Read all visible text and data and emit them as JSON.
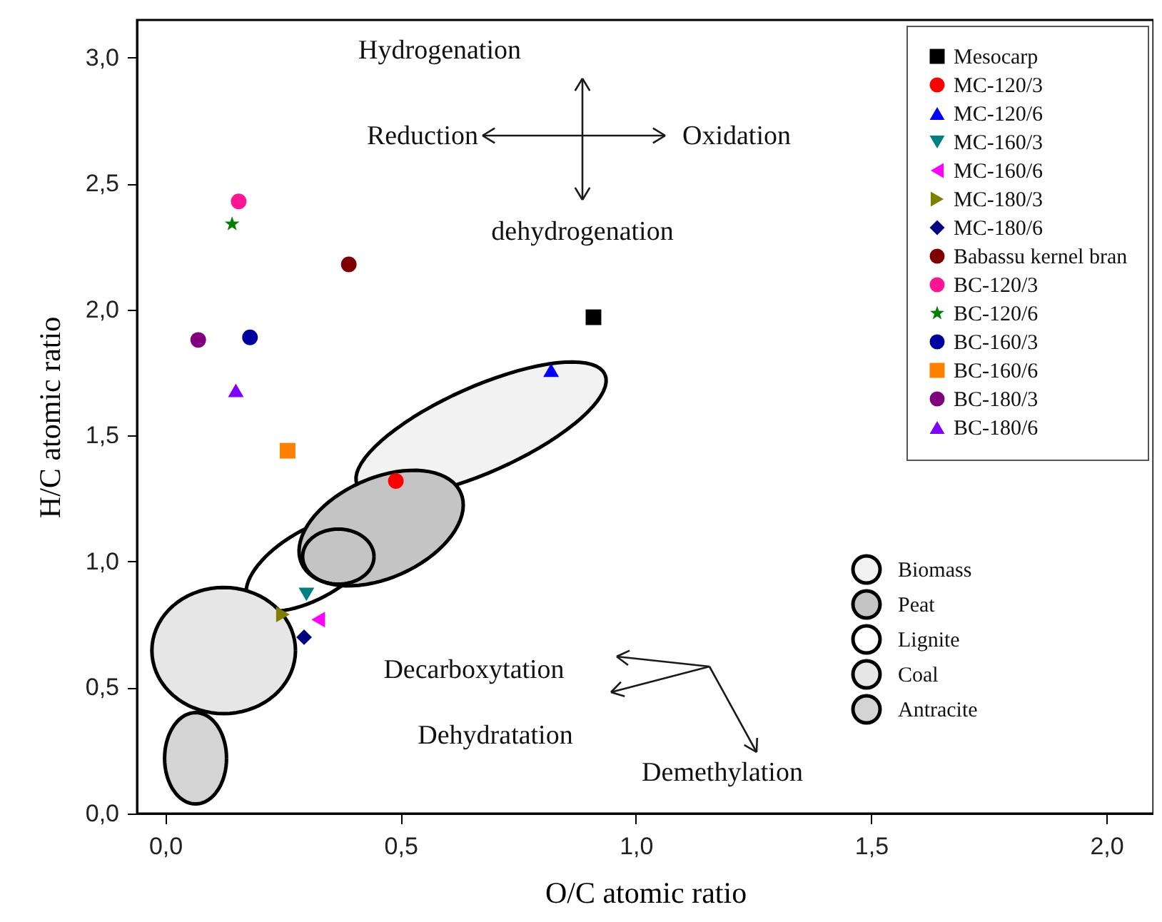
{
  "chart_data": {
    "type": "scatter",
    "xlabel": "O/C atomic ratio",
    "ylabel": "H/C atomic ratio",
    "xlim": [
      -0.06,
      2.1
    ],
    "ylim": [
      0,
      3.15
    ],
    "xticks": [
      {
        "value": 0,
        "label": "0,0"
      },
      {
        "value": 0.5,
        "label": "0,5"
      },
      {
        "value": 1,
        "label": "1,0"
      },
      {
        "value": 1.5,
        "label": "1,5"
      },
      {
        "value": 2,
        "label": "2,0"
      }
    ],
    "yticks": [
      {
        "value": 0,
        "label": "0,0"
      },
      {
        "value": 0.5,
        "label": "0,5"
      },
      {
        "value": 1,
        "label": "1,0"
      },
      {
        "value": 1.5,
        "label": "1,5"
      },
      {
        "value": 2,
        "label": "2,0"
      },
      {
        "value": 2.5,
        "label": "2,5"
      },
      {
        "value": 3,
        "label": "3,0"
      }
    ],
    "grid": false,
    "legend": "top right",
    "annotations": [
      "Hydrogenation",
      "Reduction",
      "Oxidation",
      "dehydrogenation",
      "Decarboxytation",
      "Dehydratation",
      "Demethylation",
      "Biomass",
      "Peat",
      "Lignite",
      "Coal",
      "Antracite"
    ],
    "series": [
      {
        "name": "Mesocarp",
        "type": "scatter",
        "marker": "square",
        "color": "#000000",
        "x": [
          0.91
        ],
        "values": [
          1.97
        ]
      },
      {
        "name": "MC-120/3",
        "type": "scatter",
        "marker": "circle",
        "color": "#ff0000",
        "x": [
          0.49
        ],
        "values": [
          1.32
        ]
      },
      {
        "name": "MC-120/6",
        "type": "scatter",
        "marker": "triangle",
        "color": "#0000ff",
        "x": [
          0.82
        ],
        "values": [
          1.76
        ]
      },
      {
        "name": "MC-160/3",
        "type": "scatter",
        "marker": "triangle-down",
        "color": "#008080",
        "x": [
          0.3
        ],
        "values": [
          0.87
        ]
      },
      {
        "name": "MC-160/6",
        "type": "scatter",
        "marker": "triangle-left",
        "color": "#ff00ff",
        "x": [
          0.325
        ],
        "values": [
          0.77
        ]
      },
      {
        "name": "MC-180/3",
        "type": "scatter",
        "marker": "triangle-right",
        "color": "#808000",
        "x": [
          0.25
        ],
        "values": [
          0.79
        ]
      },
      {
        "name": "MC-180/6",
        "type": "scatter",
        "marker": "diamond",
        "color": "#000080",
        "x": [
          0.295
        ],
        "values": [
          0.7
        ]
      },
      {
        "name": "Babassu kernel bran",
        "type": "scatter",
        "color": "#800000",
        "x": [
          0.39
        ],
        "values": [
          2.18
        ]
      },
      {
        "name": "BC-120/3",
        "type": "scatter",
        "marker": "circle",
        "color": "#ff1493",
        "x": [
          0.156
        ],
        "values": [
          2.43
        ]
      },
      {
        "name": "BC-120/6",
        "type": "scatter",
        "marker": "star",
        "color": "#008000",
        "x": [
          0.142
        ],
        "values": [
          2.34
        ]
      },
      {
        "name": "BC-160/3",
        "type": "scatter",
        "marker": "circle",
        "color": "#0000a0",
        "x": [
          0.18
        ],
        "values": [
          1.89
        ]
      },
      {
        "name": "BC-160/6",
        "type": "scatter",
        "marker": "square",
        "color": "#ff8000",
        "x": [
          0.26
        ],
        "values": [
          1.44
        ]
      },
      {
        "name": "BC-180/3",
        "type": "scatter",
        "marker": "circle",
        "color": "#800080",
        "x": [
          0.07
        ],
        "values": [
          1.88
        ]
      },
      {
        "name": "BC-180/6",
        "type": "scatter",
        "marker": "triangle",
        "color": "#8000ff",
        "x": [
          0.15
        ],
        "values": [
          1.68
        ]
      }
    ]
  }
}
